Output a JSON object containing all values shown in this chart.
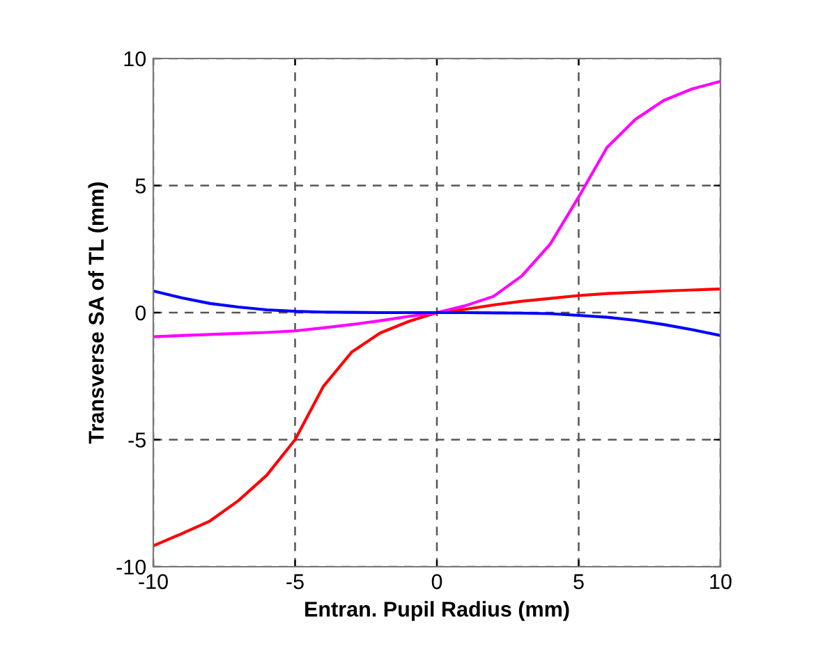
{
  "chart_data": {
    "type": "line",
    "xlabel": "Entran. Pupil Radius (mm)",
    "ylabel": "Transverse SA of TL (mm)",
    "x": [
      -10,
      -9,
      -8,
      -7,
      -6,
      -5,
      -4,
      -3,
      -2,
      -1,
      0,
      1,
      2,
      3,
      4,
      5,
      6,
      7,
      8,
      9,
      10
    ],
    "series": [
      {
        "color": "#ff0000",
        "values": [
          -9.18,
          -8.7,
          -8.2,
          -7.4,
          -6.4,
          -5,
          -2.9,
          -1.55,
          -0.8,
          -0.35,
          0,
          0.13,
          0.3,
          0.45,
          0.56,
          0.67,
          0.75,
          0.8,
          0.85,
          0.89,
          0.93
        ]
      },
      {
        "color": "#ff00ff",
        "values": [
          -0.95,
          -0.9,
          -0.86,
          -0.82,
          -0.78,
          -0.72,
          -0.6,
          -0.47,
          -0.32,
          -0.15,
          0,
          0.27,
          0.64,
          1.45,
          2.7,
          4.55,
          6.5,
          7.6,
          8.35,
          8.8,
          9.1
        ]
      },
      {
        "color": "#0000ff",
        "values": [
          0.85,
          0.58,
          0.36,
          0.22,
          0.11,
          0.05,
          0.02,
          0.01,
          0,
          0,
          0,
          0,
          -0.01,
          -0.02,
          -0.04,
          -0.11,
          -0.18,
          -0.3,
          -0.47,
          -0.67,
          -0.9
        ]
      }
    ],
    "xlim": [
      -10,
      10
    ],
    "ylim": [
      -10,
      10
    ],
    "xticks": [
      -10,
      -5,
      0,
      5,
      10
    ],
    "yticks": [
      -10,
      -5,
      0,
      5,
      10
    ],
    "grid": true,
    "legend": false,
    "marker": "none",
    "line_style": "solid"
  }
}
